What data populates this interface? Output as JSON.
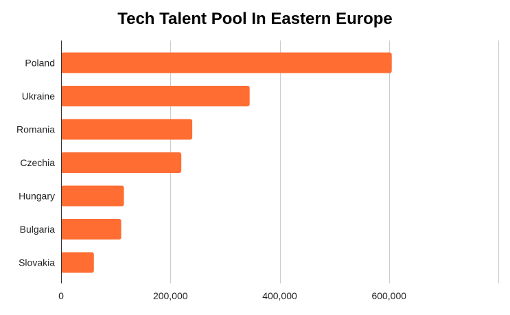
{
  "chart_data": {
    "type": "bar",
    "orientation": "horizontal",
    "title": "Tech Talent Pool In Eastern Europe",
    "xlabel": "",
    "ylabel": "",
    "categories": [
      "Poland",
      "Ukraine",
      "Romania",
      "Czechia",
      "Hungary",
      "Bulgaria",
      "Slovakia"
    ],
    "values": [
      605000,
      345000,
      240000,
      220000,
      115000,
      110000,
      60000
    ],
    "xlim": [
      0,
      800000
    ],
    "xticks": [
      "0",
      "200,000",
      "400,000",
      "600,000"
    ],
    "grid": "vertical",
    "legend": "none",
    "colors": {
      "bar": "#ff6d33",
      "grid": "#cccccc",
      "axis": "#333333"
    }
  }
}
